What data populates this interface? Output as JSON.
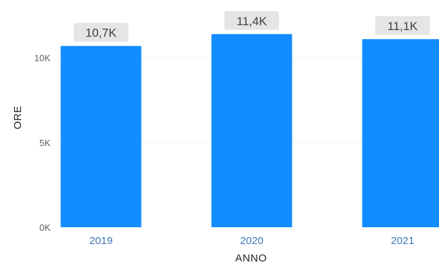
{
  "chart_data": {
    "type": "bar",
    "categories": [
      "2019",
      "2020",
      "2021"
    ],
    "values": [
      10700,
      11400,
      11100
    ],
    "data_labels": [
      "10,7K",
      "11,4K",
      "11,1K"
    ],
    "xlabel": "ANNO",
    "ylabel": "ORE",
    "ylim": [
      0,
      13000
    ],
    "yticks": [
      0,
      5000,
      10000
    ],
    "ytick_labels": [
      "0K",
      "5K",
      "10K"
    ],
    "grid": true,
    "colors": {
      "bar": "#118dff",
      "label_bg": "#e5e5e5",
      "xtick": "#3f78b5"
    }
  }
}
